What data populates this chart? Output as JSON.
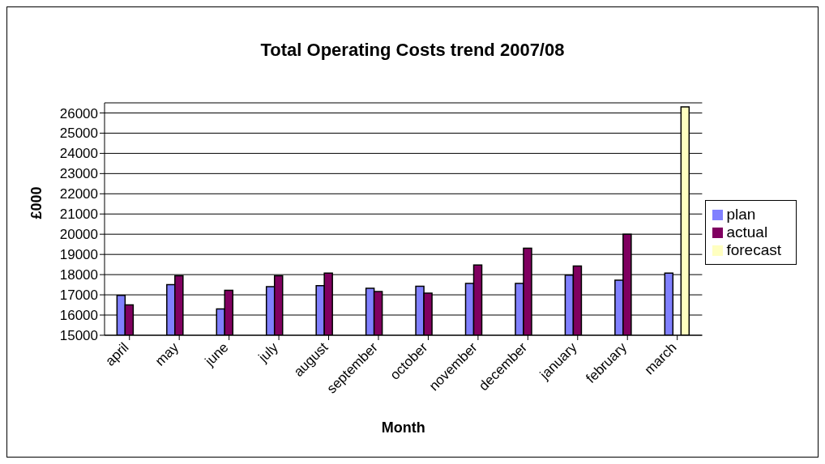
{
  "chart_data": {
    "type": "bar",
    "title": "Total Operating Costs trend 2007/08",
    "xlabel": "Month",
    "ylabel": "£000",
    "categories": [
      "april",
      "may",
      "june",
      "july",
      "august",
      "september",
      "october",
      "november",
      "december",
      "january",
      "february",
      "march"
    ],
    "series": [
      {
        "name": "plan",
        "color": "#8080ff",
        "values": [
          16970,
          17500,
          16300,
          17400,
          17450,
          17320,
          17420,
          17560,
          17560,
          17980,
          17720,
          18080
        ]
      },
      {
        "name": "actual",
        "color": "#800060",
        "values": [
          16500,
          17950,
          17220,
          17950,
          18080,
          17160,
          17080,
          18480,
          19310,
          18430,
          20000,
          null
        ]
      },
      {
        "name": "forecast",
        "color": "#ffffc0",
        "values": [
          null,
          null,
          null,
          null,
          null,
          null,
          null,
          null,
          null,
          null,
          null,
          26300
        ]
      }
    ],
    "ylim": [
      15000,
      26500
    ],
    "yticks": [
      15000,
      16000,
      17000,
      18000,
      19000,
      20000,
      21000,
      22000,
      23000,
      24000,
      25000,
      26000
    ],
    "grid": "y",
    "legend": "right"
  }
}
